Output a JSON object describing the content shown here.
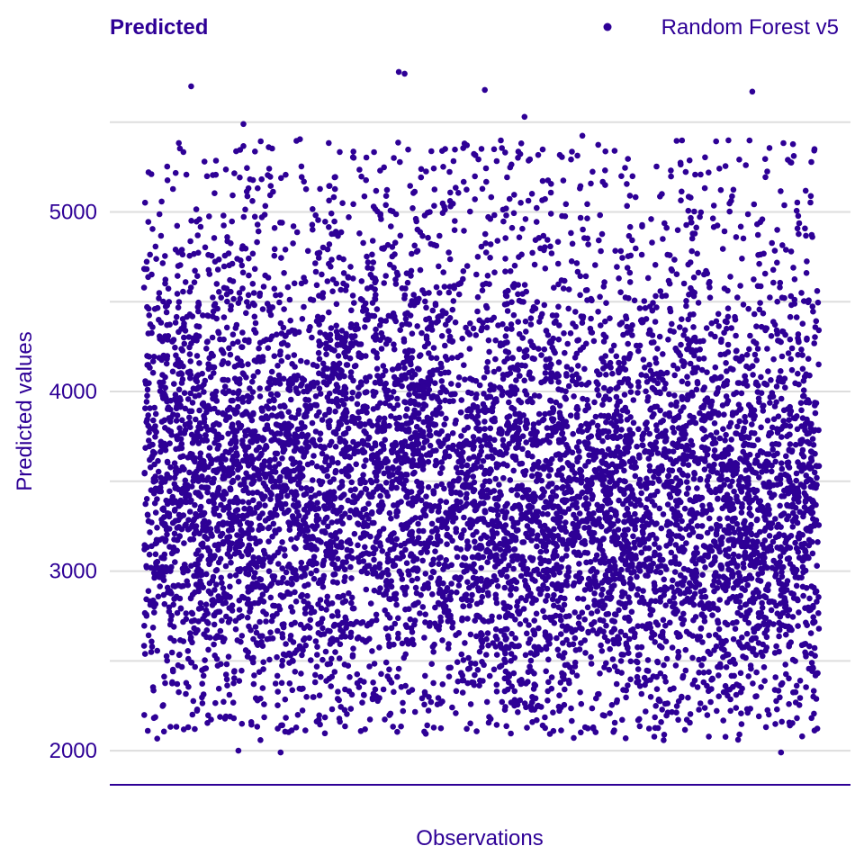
{
  "colors": {
    "accent": "#2e0096",
    "grid": "#dddddd",
    "background": "#ffffff"
  },
  "chart_data": {
    "type": "scatter",
    "title": "Predicted",
    "xlabel": "Observations",
    "ylabel": "Predicted values",
    "ylim": [
      1810,
      5990
    ],
    "yticks": [
      2000,
      3000,
      4000,
      5000
    ],
    "grid": {
      "major_y": true,
      "minor_y": true,
      "x": false
    },
    "legend": {
      "position": "top-right",
      "entries": [
        "Random Forest v5"
      ]
    },
    "series": [
      {
        "name": "Random Forest v5",
        "x_range": [
          1,
          8000
        ],
        "n_points": 8000,
        "approx_y_range": [
          1990,
          5780
        ],
        "outliers": [
          {
            "x": 560,
            "y": 5700
          },
          {
            "x": 3020,
            "y": 5780
          },
          {
            "x": 3090,
            "y": 5770
          },
          {
            "x": 4040,
            "y": 5680
          },
          {
            "x": 7210,
            "y": 5670
          },
          {
            "x": 1180,
            "y": 5490
          },
          {
            "x": 4510,
            "y": 5530
          },
          {
            "x": 1620,
            "y": 1990
          },
          {
            "x": 7550,
            "y": 1990
          },
          {
            "x": 1120,
            "y": 2000
          }
        ]
      }
    ]
  }
}
